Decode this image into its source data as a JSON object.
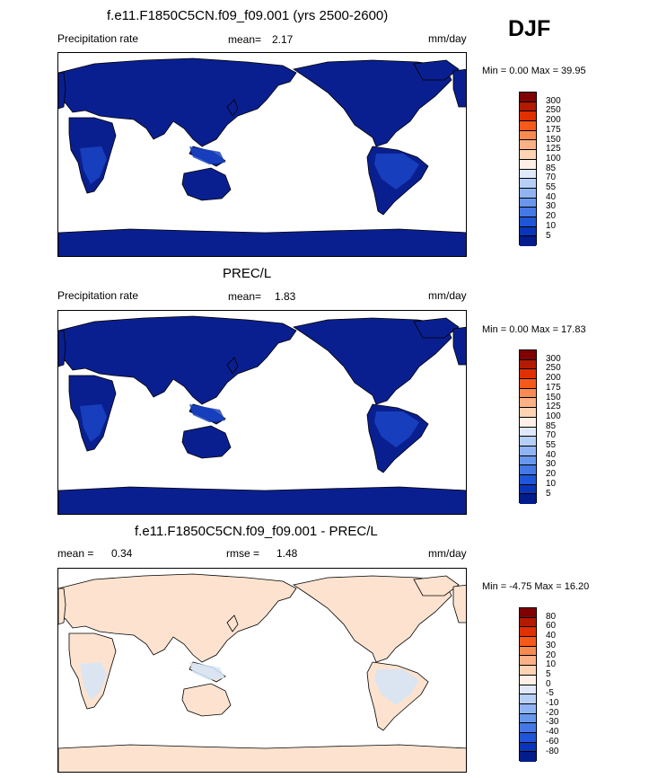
{
  "season": "DJF",
  "panels": [
    {
      "title": "f.e11.F1850C5CN.f09_f09.001 (yrs 2500-2600)",
      "left_label": "Precipitation rate",
      "mean_label": "mean=",
      "mean_value": "2.17",
      "units": "mm/day",
      "minmax": "Min =   0.00 Max =  39.95",
      "map_colors": {
        "land": "#0a1f8f",
        "wet": "#1a44c4",
        "coast": "#000000"
      },
      "colorbar": {
        "labels": [
          "300",
          "250",
          "200",
          "175",
          "150",
          "125",
          "100",
          "85",
          "70",
          "55",
          "40",
          "30",
          "20",
          "10",
          "5"
        ],
        "colors": [
          "#800000",
          "#b31a00",
          "#e03000",
          "#f55a1a",
          "#fa8a52",
          "#fbb086",
          "#fcd4b4",
          "#fef0e6",
          "#dfe9fb",
          "#b7cff7",
          "#90b4f3",
          "#6a97ee",
          "#4478e6",
          "#1f55d7",
          "#0a35b8",
          "#031c8c"
        ]
      }
    },
    {
      "title": "PREC/L",
      "left_label": "Precipitation rate",
      "mean_label": "mean=",
      "mean_value": "1.83",
      "units": "mm/day",
      "minmax": "Min =   0.00 Max =  17.83",
      "map_colors": {
        "land": "#0a1f8f",
        "wet": "#1a44c4",
        "coast": "#000000"
      },
      "colorbar": {
        "labels": [
          "300",
          "250",
          "200",
          "175",
          "150",
          "125",
          "100",
          "85",
          "70",
          "55",
          "40",
          "30",
          "20",
          "10",
          "5"
        ],
        "colors": [
          "#800000",
          "#b31a00",
          "#e03000",
          "#f55a1a",
          "#fa8a52",
          "#fbb086",
          "#fcd4b4",
          "#fef0e6",
          "#dfe9fb",
          "#b7cff7",
          "#90b4f3",
          "#6a97ee",
          "#4478e6",
          "#1f55d7",
          "#0a35b8",
          "#031c8c"
        ]
      }
    },
    {
      "title": "f.e11.F1850C5CN.f09_f09.001 - PREC/L",
      "left_label": "",
      "mean_label": "mean =",
      "mean_value": "0.34",
      "rmse_label": "rmse =",
      "rmse_value": "1.48",
      "units": "mm/day",
      "minmax": "Min =  -4.75 Max =  16.20",
      "map_colors": {
        "land": "#fde3cf",
        "wet": "#d5e5f7",
        "coast": "#000000"
      },
      "colorbar": {
        "labels": [
          "80",
          "60",
          "40",
          "30",
          "20",
          "10",
          "5",
          "0",
          "-5",
          "-10",
          "-20",
          "-30",
          "-40",
          "-60",
          "-80"
        ],
        "colors": [
          "#800000",
          "#b31a00",
          "#e03000",
          "#f55a1a",
          "#fa8a52",
          "#fbb086",
          "#fcd4b4",
          "#fef0e6",
          "#dfe9fb",
          "#b7cff7",
          "#90b4f3",
          "#6a97ee",
          "#4478e6",
          "#1f55d7",
          "#0a35b8",
          "#031c8c"
        ]
      }
    }
  ]
}
